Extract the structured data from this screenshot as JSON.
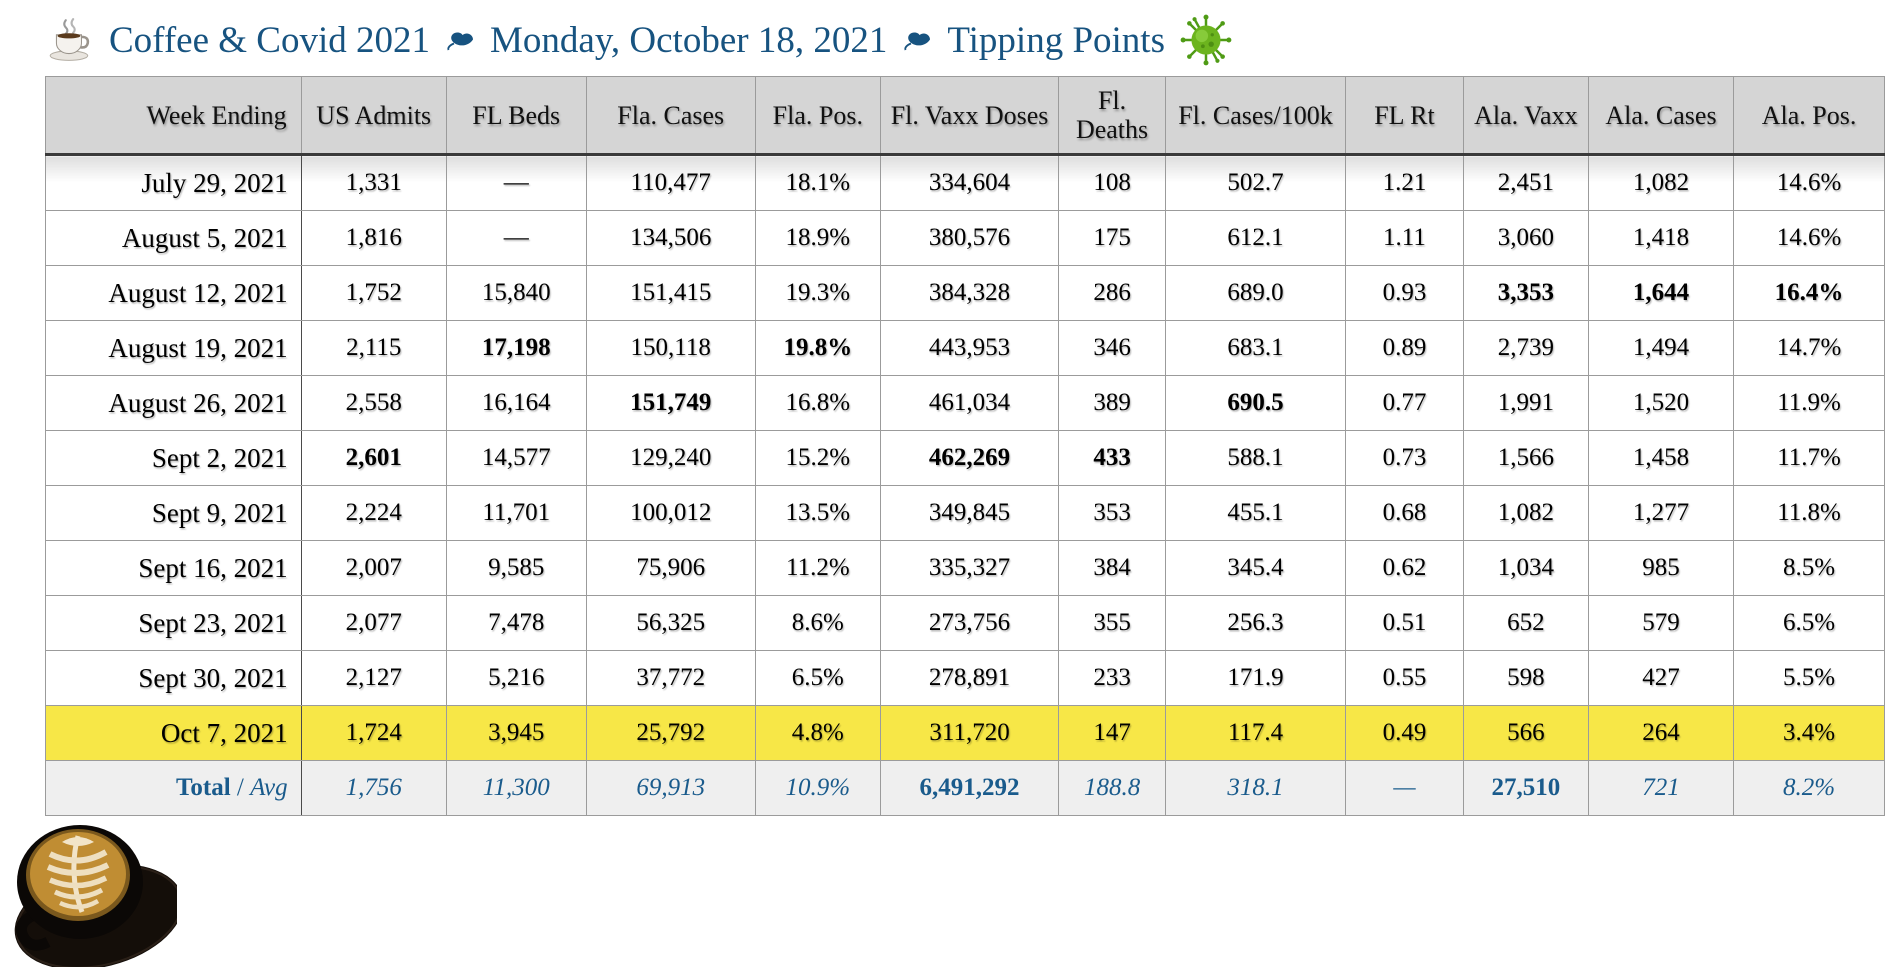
{
  "title": {
    "app": "Coffee & Covid 2021",
    "date": "Monday, October 18, 2021",
    "topic": "Tipping Points"
  },
  "icons": {
    "leading": "coffee-cup-icon",
    "separator": "fleuron-leaf-icon",
    "trailing": "virus-icon",
    "footer": "latte-art-photo"
  },
  "colors": {
    "title_blue": "#175380",
    "header_bg": "#D5D5D5",
    "highlight_yellow": "#F7E747",
    "total_bg": "#EFEFEF",
    "total_text_blue": "#1A5B8C",
    "virus_green": "#6cb41e"
  },
  "table": {
    "columns": [
      "Week Ending",
      "US Admits",
      "FL Beds",
      "Fla. Cases",
      "Fla. Pos.",
      "Fl. Vaxx Doses",
      "Fl. Deaths",
      "Fl. Cases/100k",
      "FL Rt",
      "Ala. Vaxx",
      "Ala. Cases",
      "Ala. Pos."
    ],
    "rows": [
      {
        "date": "July 29, 2021",
        "values": [
          "1,331",
          "—",
          "110,477",
          "18.1%",
          "334,604",
          "108",
          "502.7",
          "1.21",
          "2,451",
          "1,082",
          "14.6%"
        ],
        "bold": [],
        "highlight": false
      },
      {
        "date": "August 5, 2021",
        "values": [
          "1,816",
          "—",
          "134,506",
          "18.9%",
          "380,576",
          "175",
          "612.1",
          "1.11",
          "3,060",
          "1,418",
          "14.6%"
        ],
        "bold": [],
        "highlight": false
      },
      {
        "date": "August 12, 2021",
        "values": [
          "1,752",
          "15,840",
          "151,415",
          "19.3%",
          "384,328",
          "286",
          "689.0",
          "0.93",
          "3,353",
          "1,644",
          "16.4%"
        ],
        "bold": [
          8,
          9,
          10
        ],
        "highlight": false
      },
      {
        "date": "August 19, 2021",
        "values": [
          "2,115",
          "17,198",
          "150,118",
          "19.8%",
          "443,953",
          "346",
          "683.1",
          "0.89",
          "2,739",
          "1,494",
          "14.7%"
        ],
        "bold": [
          1,
          3
        ],
        "highlight": false
      },
      {
        "date": "August 26, 2021",
        "values": [
          "2,558",
          "16,164",
          "151,749",
          "16.8%",
          "461,034",
          "389",
          "690.5",
          "0.77",
          "1,991",
          "1,520",
          "11.9%"
        ],
        "bold": [
          2,
          6
        ],
        "highlight": false
      },
      {
        "date": "Sept 2, 2021",
        "values": [
          "2,601",
          "14,577",
          "129,240",
          "15.2%",
          "462,269",
          "433",
          "588.1",
          "0.73",
          "1,566",
          "1,458",
          "11.7%"
        ],
        "bold": [
          0,
          4,
          5
        ],
        "highlight": false
      },
      {
        "date": "Sept 9, 2021",
        "values": [
          "2,224",
          "11,701",
          "100,012",
          "13.5%",
          "349,845",
          "353",
          "455.1",
          "0.68",
          "1,082",
          "1,277",
          "11.8%"
        ],
        "bold": [],
        "highlight": false
      },
      {
        "date": "Sept 16, 2021",
        "values": [
          "2,007",
          "9,585",
          "75,906",
          "11.2%",
          "335,327",
          "384",
          "345.4",
          "0.62",
          "1,034",
          "985",
          "8.5%"
        ],
        "bold": [],
        "highlight": false
      },
      {
        "date": "Sept 23, 2021",
        "values": [
          "2,077",
          "7,478",
          "56,325",
          "8.6%",
          "273,756",
          "355",
          "256.3",
          "0.51",
          "652",
          "579",
          "6.5%"
        ],
        "bold": [],
        "highlight": false
      },
      {
        "date": "Sept 30, 2021",
        "values": [
          "2,127",
          "5,216",
          "37,772",
          "6.5%",
          "278,891",
          "233",
          "171.9",
          "0.55",
          "598",
          "427",
          "5.5%"
        ],
        "bold": [],
        "highlight": false
      },
      {
        "date": "Oct 7, 2021",
        "values": [
          "1,724",
          "3,945",
          "25,792",
          "4.8%",
          "311,720",
          "147",
          "117.4",
          "0.49",
          "566",
          "264",
          "3.4%"
        ],
        "bold": [],
        "highlight": true
      }
    ],
    "total": {
      "label_bold": "Total",
      "label_sep": " / ",
      "label_italic": "Avg",
      "values": [
        "1,756",
        "11,300",
        "69,913",
        "10.9%",
        "6,491,292",
        "188.8",
        "318.1",
        "—",
        "27,510",
        "721",
        "8.2%"
      ],
      "bold": [
        4,
        8
      ]
    }
  }
}
